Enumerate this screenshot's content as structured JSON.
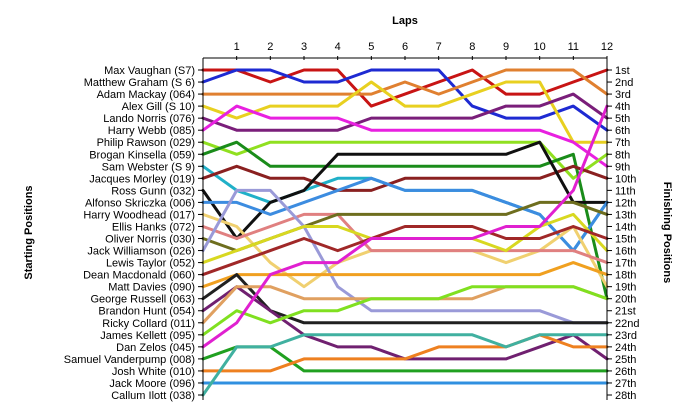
{
  "chart_data": {
    "type": "line",
    "title": "",
    "xlabel": "Laps",
    "ylabel_left": "Starting Positions",
    "ylabel_right": "Finishing Positions",
    "x": [
      0,
      1,
      2,
      3,
      4,
      5,
      6,
      7,
      8,
      9,
      10,
      11,
      12
    ],
    "x_tick_labels": [
      "1",
      "2",
      "3",
      "4",
      "5",
      "6",
      "7",
      "8",
      "9",
      "10",
      "11",
      "12"
    ],
    "ylim": [
      1,
      28
    ],
    "y_inverted": true,
    "grid": false,
    "starting_labels": [
      "Max Vaughan (S7)",
      "Matthew Graham (S 6)",
      "Adam Mackay (064)",
      "Alex Gill (S 10)",
      "Lando Norris (076)",
      "Harry Webb (085)",
      "Philip Rawson (029)",
      "Brogan Kinsella (059)",
      "Sam Webster (S 9)",
      "Jacques Morley (019)",
      "Ross Gunn (032)",
      "Alfonso Skriczka (006)",
      "Harry Woodhead (017)",
      "Ellis Hanks (072)",
      "Oliver Norris (030)",
      "Jack Williamson (026)",
      "Lewis Taylor (052)",
      "Dean Macdonald (060)",
      "Matt Davies (090)",
      "George Russell (063)",
      "Brandon Hunt (054)",
      "Ricky Collard (011)",
      "James Kellett (095)",
      "Dan Zelos (045)",
      "Samuel Vanderpump (008)",
      "Josh White (010)",
      "Jack Moore (096)",
      "Callum Ilott (038)"
    ],
    "finishing_labels": [
      "1st",
      "2nd",
      "3rd",
      "4th",
      "5th",
      "6th",
      "7th",
      "8th",
      "9th",
      "10th",
      "11th",
      "12th",
      "13th",
      "14th",
      "15th",
      "16th",
      "17th",
      "18th",
      "19th",
      "20th",
      "21st",
      "22nd",
      "23rd",
      "24th",
      "25th",
      "26th",
      "27th",
      "28th"
    ],
    "series": [
      {
        "color": "#c81414",
        "values": [
          1,
          1,
          2,
          1,
          1,
          4,
          3,
          2,
          1,
          3,
          3,
          2,
          1
        ]
      },
      {
        "color": "#1e2ad2",
        "values": [
          2,
          1,
          1,
          2,
          2,
          1,
          1,
          1,
          4,
          5,
          5,
          4,
          6
        ]
      },
      {
        "color": "#e08030",
        "values": [
          3,
          3,
          3,
          3,
          3,
          3,
          2,
          3,
          2,
          1,
          1,
          1,
          3
        ]
      },
      {
        "color": "#e8d020",
        "values": [
          4,
          5,
          4,
          4,
          4,
          2,
          4,
          4,
          3,
          2,
          2,
          7,
          7
        ]
      },
      {
        "color": "#7a1e7a",
        "values": [
          5,
          6,
          6,
          6,
          6,
          5,
          5,
          5,
          5,
          4,
          4,
          3,
          5
        ]
      },
      {
        "color": "#e820e0",
        "values": [
          6,
          4,
          5,
          5,
          5,
          6,
          6,
          6,
          6,
          6,
          6,
          7,
          9
        ]
      },
      {
        "color": "#90e020",
        "values": [
          7,
          8,
          7,
          7,
          7,
          7,
          7,
          7,
          7,
          7,
          7,
          10,
          8
        ]
      },
      {
        "color": "#1a8c1a",
        "values": [
          8,
          7,
          9,
          9,
          9,
          9,
          9,
          9,
          9,
          9,
          9,
          8,
          20
        ]
      },
      {
        "color": "#20b0c8",
        "values": [
          9,
          11,
          12,
          11,
          10,
          10,
          11,
          11,
          11,
          12,
          13,
          16,
          12
        ]
      },
      {
        "color": "#8a2020",
        "values": [
          10,
          9,
          10,
          10,
          11,
          11,
          10,
          10,
          10,
          10,
          10,
          9,
          10
        ]
      },
      {
        "color": "#101010",
        "values": [
          11,
          15,
          12,
          11,
          8,
          8,
          8,
          8,
          8,
          8,
          7,
          12,
          12
        ]
      },
      {
        "color": "#3c8ce0",
        "values": [
          12,
          12,
          13,
          12,
          11,
          10,
          11,
          11,
          11,
          12,
          13,
          16,
          12
        ]
      },
      {
        "color": "#f0d070",
        "values": [
          13,
          14,
          17,
          19,
          17,
          16,
          16,
          16,
          16,
          17,
          16,
          14,
          19
        ]
      },
      {
        "color": "#e08080",
        "values": [
          14,
          15,
          14,
          13,
          13,
          16,
          16,
          16,
          16,
          16,
          16,
          16,
          17
        ]
      },
      {
        "color": "#6e6e1e",
        "values": [
          15,
          16,
          15,
          14,
          13,
          13,
          13,
          13,
          13,
          13,
          12,
          12,
          13
        ]
      },
      {
        "color": "#9a9ad8",
        "values": [
          16,
          11,
          11,
          14,
          19,
          21,
          21,
          21,
          21,
          21,
          21,
          22,
          22
        ]
      },
      {
        "color": "#d8d820",
        "values": [
          17,
          16,
          15,
          14,
          14,
          15,
          15,
          15,
          15,
          16,
          14,
          13,
          16
        ]
      },
      {
        "color": "#a02828",
        "values": [
          18,
          17,
          16,
          15,
          16,
          15,
          14,
          14,
          14,
          15,
          15,
          14,
          15
        ]
      },
      {
        "color": "#f0a020",
        "values": [
          19,
          18,
          18,
          18,
          18,
          18,
          18,
          18,
          18,
          18,
          18,
          17,
          18
        ]
      },
      {
        "color": "#202020",
        "values": [
          20,
          18,
          21,
          22,
          22,
          22,
          22,
          22,
          22,
          22,
          22,
          22,
          22
        ]
      },
      {
        "color": "#702070",
        "values": [
          21,
          19,
          21,
          23,
          24,
          24,
          25,
          25,
          25,
          25,
          24,
          23,
          25
        ]
      },
      {
        "color": "#e0a060",
        "values": [
          22,
          19,
          19,
          20,
          20,
          20,
          20,
          20,
          20,
          19,
          19,
          19,
          20
        ]
      },
      {
        "color": "#80e020",
        "values": [
          23,
          21,
          22,
          21,
          21,
          20,
          20,
          20,
          19,
          19,
          19,
          19,
          20
        ]
      },
      {
        "color": "#e020d0",
        "values": [
          24,
          22,
          18,
          17,
          17,
          15,
          15,
          15,
          15,
          14,
          14,
          11,
          4
        ]
      },
      {
        "color": "#20a020",
        "values": [
          25,
          24,
          24,
          26,
          26,
          26,
          26,
          26,
          26,
          26,
          26,
          26,
          26
        ]
      },
      {
        "color": "#ee8020",
        "values": [
          26,
          26,
          26,
          25,
          25,
          25,
          25,
          24,
          24,
          24,
          23,
          24,
          24
        ]
      },
      {
        "color": "#3090e0",
        "values": [
          27,
          27,
          27,
          27,
          27,
          27,
          27,
          27,
          27,
          27,
          27,
          27,
          27
        ]
      },
      {
        "color": "#40b0a0",
        "values": [
          28,
          24,
          24,
          23,
          23,
          23,
          23,
          23,
          23,
          24,
          23,
          23,
          23
        ]
      }
    ]
  }
}
